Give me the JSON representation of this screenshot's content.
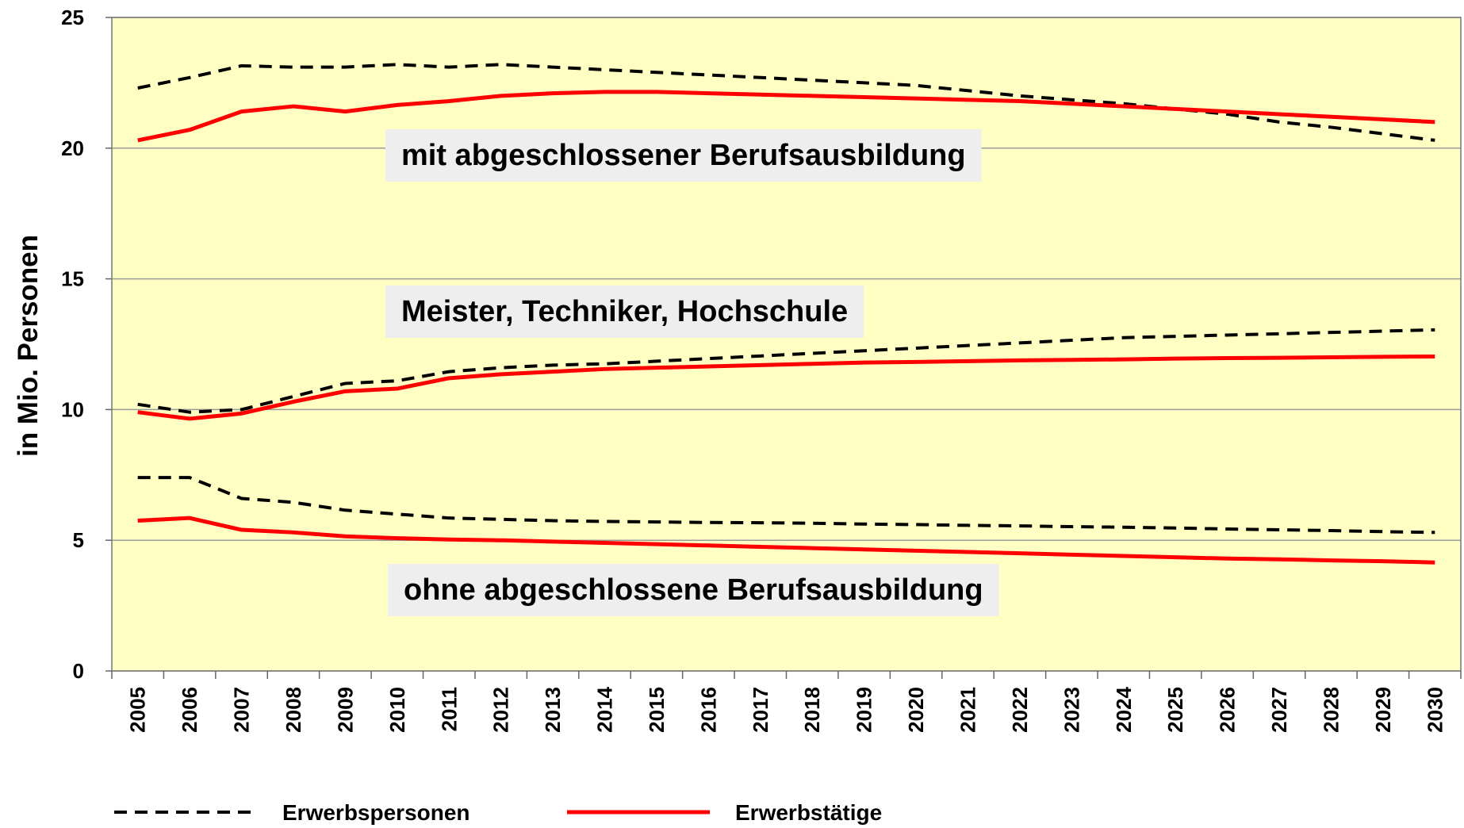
{
  "chart_data": {
    "type": "line",
    "y_label": "in Mio. Personen",
    "categories": [
      "2005",
      "2006",
      "2007",
      "2008",
      "2009",
      "2010",
      "2011",
      "2012",
      "2013",
      "2014",
      "2015",
      "2016",
      "2017",
      "2018",
      "2019",
      "2020",
      "2021",
      "2022",
      "2023",
      "2024",
      "2025",
      "2026",
      "2027",
      "2028",
      "2029",
      "2030"
    ],
    "ylim": [
      0,
      25
    ],
    "yticks": [
      0,
      5,
      10,
      15,
      20,
      25
    ],
    "grid": true,
    "series": [
      {
        "name": "Erwerbspersonen",
        "color": "#000000",
        "dashed": true,
        "values": [
          22.3,
          22.7,
          23.15,
          23.1,
          23.1,
          23.2,
          23.1,
          23.2,
          23.1,
          23.0,
          22.9,
          22.8,
          22.7,
          22.6,
          22.5,
          22.4,
          22.2,
          22.0,
          21.85,
          21.7,
          21.5,
          21.3,
          21.0,
          20.8,
          20.55,
          20.3
        ]
      },
      {
        "name": "Erwerbstätige",
        "color": "#ff0000",
        "dashed": false,
        "values": [
          20.3,
          20.7,
          21.4,
          21.6,
          21.4,
          21.65,
          21.8,
          22.0,
          22.1,
          22.15,
          22.15,
          22.1,
          22.05,
          22.0,
          21.95,
          21.9,
          21.85,
          21.8,
          21.7,
          21.6,
          21.5,
          21.4,
          21.3,
          21.2,
          21.1,
          21.0
        ]
      },
      {
        "name": "Erwerbspersonen",
        "color": "#000000",
        "dashed": true,
        "values": [
          10.2,
          9.9,
          10.0,
          10.5,
          11.0,
          11.1,
          11.45,
          11.6,
          11.7,
          11.75,
          11.85,
          11.95,
          12.05,
          12.15,
          12.25,
          12.35,
          12.45,
          12.55,
          12.65,
          12.75,
          12.8,
          12.85,
          12.9,
          12.95,
          13.0,
          13.05
        ]
      },
      {
        "name": "Erwerbstätige",
        "color": "#ff0000",
        "dashed": false,
        "values": [
          9.9,
          9.65,
          9.85,
          10.3,
          10.7,
          10.8,
          11.2,
          11.35,
          11.45,
          11.55,
          11.6,
          11.65,
          11.7,
          11.75,
          11.8,
          11.82,
          11.85,
          11.88,
          11.9,
          11.92,
          11.95,
          11.97,
          11.98,
          12.0,
          12.02,
          12.03
        ]
      },
      {
        "name": "Erwerbspersonen",
        "color": "#000000",
        "dashed": true,
        "values": [
          7.4,
          7.4,
          6.6,
          6.45,
          6.15,
          6.0,
          5.85,
          5.8,
          5.75,
          5.72,
          5.7,
          5.68,
          5.67,
          5.65,
          5.62,
          5.6,
          5.57,
          5.55,
          5.52,
          5.5,
          5.47,
          5.43,
          5.4,
          5.37,
          5.33,
          5.3
        ]
      },
      {
        "name": "Erwerbstätige",
        "color": "#ff0000",
        "dashed": false,
        "values": [
          5.75,
          5.85,
          5.4,
          5.3,
          5.15,
          5.08,
          5.03,
          5.0,
          4.95,
          4.9,
          4.85,
          4.8,
          4.75,
          4.7,
          4.65,
          4.6,
          4.55,
          4.5,
          4.45,
          4.4,
          4.35,
          4.3,
          4.27,
          4.23,
          4.2,
          4.15
        ]
      }
    ],
    "annotations": [
      "mit abgeschlossener Berufsausbildung",
      "Meister, Techniker, Hochschule",
      "ohne abgeschlossene Berufsausbildung"
    ]
  }
}
